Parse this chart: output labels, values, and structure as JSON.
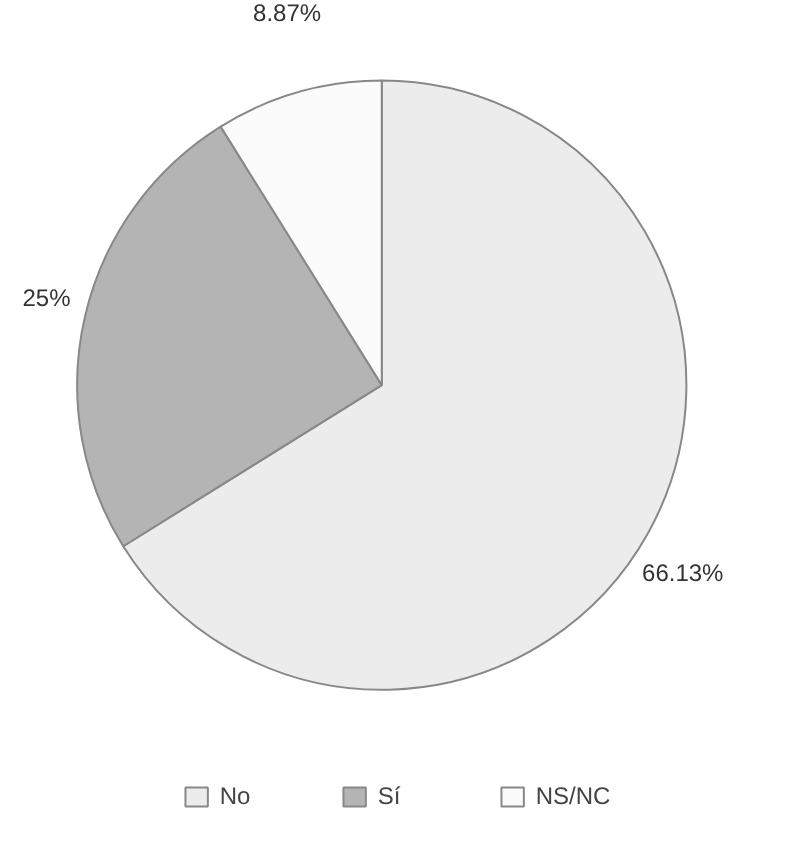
{
  "chart_data": {
    "type": "pie",
    "categories": [
      "No",
      "Sí",
      "NS/NC"
    ],
    "values": [
      66.13,
      25,
      8.87
    ],
    "value_labels": [
      "66.13%",
      "25%",
      "8.87%"
    ],
    "colors": [
      "#ececec",
      "#b4b4b4",
      "#fbfbfb"
    ],
    "legend": "bottom"
  }
}
